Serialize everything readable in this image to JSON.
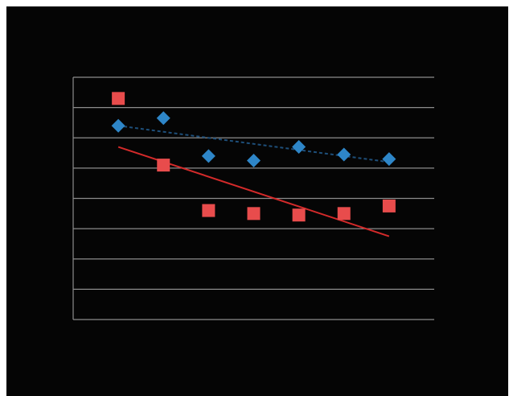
{
  "chart_data": {
    "type": "scatter",
    "title": "",
    "xlabel": "",
    "ylabel": "",
    "grid": true,
    "legend": "none",
    "xlim": [
      0,
      8
    ],
    "ylim": [
      0,
      8
    ],
    "x": [
      1,
      2,
      3,
      4,
      5,
      6,
      7
    ],
    "series": [
      {
        "marker": "diamond",
        "color": "#2e86c8",
        "values": [
          6.4,
          6.65,
          5.4,
          5.25,
          5.7,
          5.45,
          5.3
        ],
        "trendline": {
          "style": "dashed",
          "color": "#1e4f7a",
          "start": 6.4,
          "end": 5.2
        }
      },
      {
        "marker": "square",
        "color": "#e84c4c",
        "values": [
          7.3,
          5.1,
          3.6,
          3.5,
          3.45,
          3.5,
          3.75
        ],
        "trendline": {
          "style": "solid",
          "color": "#d42a2a",
          "start": 5.7,
          "end": 2.75
        }
      }
    ]
  },
  "colors": {
    "background": "#050505",
    "gridline": "#8c8c8c"
  }
}
